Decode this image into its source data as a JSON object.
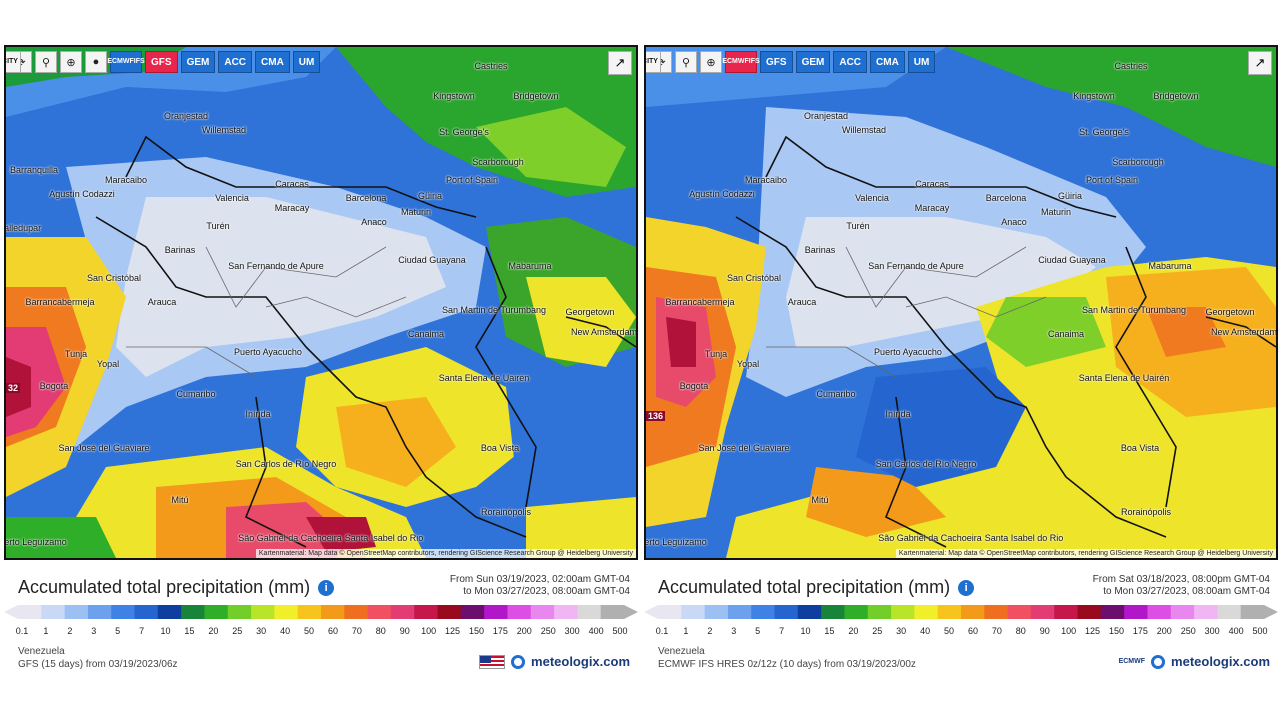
{
  "toolbar_labels": {
    "city_label": "CITY",
    "ecmwf_label": "ECMWF IFS",
    "ecmwf_line1": "ECMWF",
    "ecmwf_line2": "IFS"
  },
  "panels": [
    {
      "id": "left",
      "models": [
        "GFS",
        "GEM",
        "ACC",
        "CMA",
        "UM"
      ],
      "active_model": "GFS",
      "title": "Accumulated total precipitation (mm)",
      "range_from": "From Sun 03/19/2023, 02:00am GMT-04",
      "range_to": "to Mon 03/27/2023, 08:00am GMT-04",
      "region": "Venezuela",
      "model_info": "GFS (15 days) from 03/19/2023/06z",
      "edge_value": "32",
      "brand": "meteologix.com",
      "attribution": "Kartenmaterial: Map data © OpenStreetMap contributors, rendering GIScience Research Group @ Heidelberg University"
    },
    {
      "id": "right",
      "models": [
        "GFS",
        "GEM",
        "ACC",
        "CMA",
        "UM"
      ],
      "active_model": "ECMWF IFS",
      "title": "Accumulated total precipitation (mm)",
      "range_from": "From Sat 03/18/2023, 08:00pm GMT-04",
      "range_to": "to Mon 03/27/2023, 08:00am GMT-04",
      "region": "Venezuela",
      "model_info": "ECMWF IFS HRES 0z/12z (10 days) from 03/19/2023/00z",
      "edge_value": "136",
      "brand": "meteologix.com",
      "brand_logo_text": "ECMWF",
      "attribution": "Kartenmaterial: Map data © OpenStreetMap contributors, rendering GIScience Research Group @ Heidelberg University"
    }
  ],
  "cities": [
    "Castries",
    "Kingstown",
    "Bridgetown",
    "Oranjestad",
    "Willemstad",
    "St. George's",
    "Scarborough",
    "Barranquilla",
    "Maracaibo",
    "Port of Spain",
    "Caracas",
    "Valencia",
    "Barcelona",
    "Güiria",
    "Maracay",
    "Maturin",
    "Anaco",
    "Turén",
    "Barinas",
    "Mabaruma",
    "San Fernando de Apure",
    "Ciudad Guayana",
    "San Cristóbal",
    "Barrancabermeja",
    "Arauca",
    "San Martin de Turumbang",
    "Georgetown",
    "New Amsterdam",
    "Canaima",
    "Tunja",
    "Yopal",
    "Puerto Ayacucho",
    "Bogotá",
    "Santa Elena de Uairén",
    "Cumaribo",
    "Inírida",
    "Boa Vista",
    "San José del Guaviare",
    "San Carlos de Río Negro",
    "Mitú",
    "Rorainópolis",
    "São Gabriel da Cachoeira",
    "Santa Isabel do Rio",
    "Puerto Leguízamo",
    "Agustín Codazzi",
    "Valledupar"
  ],
  "legend": {
    "labels": [
      "0.1",
      "1",
      "2",
      "3",
      "5",
      "7",
      "10",
      "15",
      "20",
      "25",
      "30",
      "40",
      "50",
      "60",
      "70",
      "80",
      "90",
      "100",
      "125",
      "150",
      "175",
      "200",
      "250",
      "300",
      "400",
      "500"
    ],
    "colors": [
      "#e8e6f0",
      "#c9d9f5",
      "#9cc0f2",
      "#6da1ee",
      "#3f82e6",
      "#2565cf",
      "#0f3f9e",
      "#17843a",
      "#2fae2a",
      "#72cf2a",
      "#b8e42a",
      "#f1ee2a",
      "#f6c41d",
      "#f49a1b",
      "#ef6e1f",
      "#f0505f",
      "#e33b74",
      "#c6174a",
      "#9a0a1e",
      "#6b0e6e",
      "#b216c9",
      "#dc4ee4",
      "#e887ee",
      "#f0b5f2",
      "#d9d9d9",
      "#b0b0b0"
    ]
  }
}
